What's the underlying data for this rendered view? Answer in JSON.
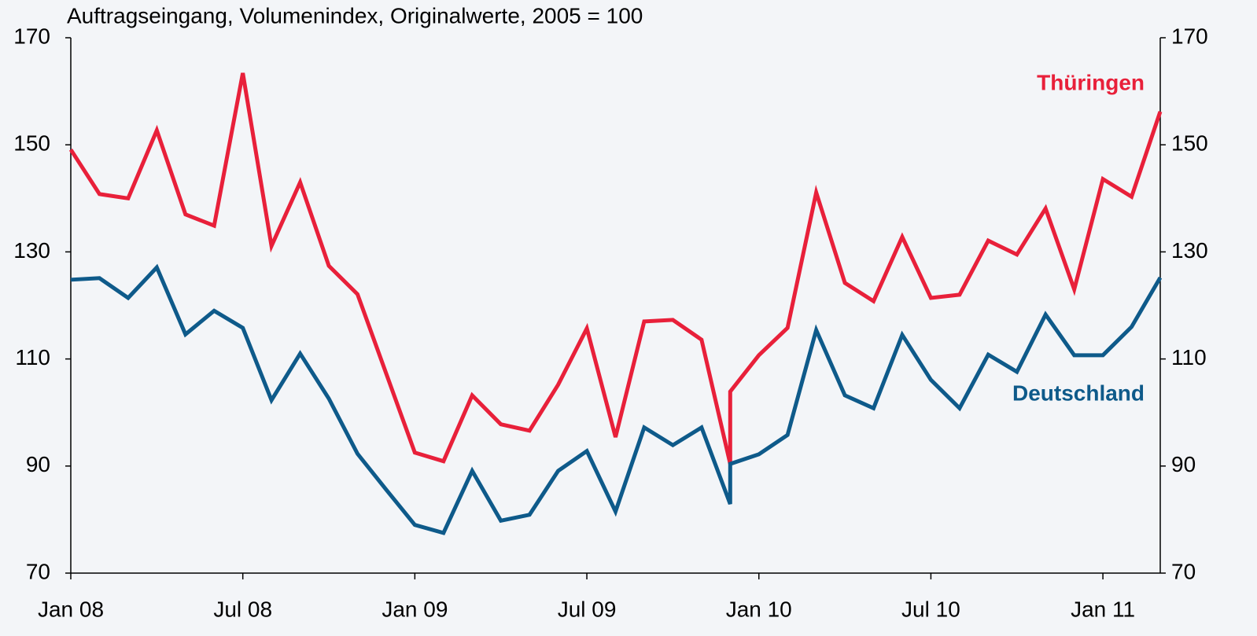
{
  "chart_data": {
    "type": "line",
    "title": "Auftragseingang, Volumenindex, Originalwerte,  2005 = 100",
    "x": [
      0,
      1,
      2,
      3,
      4,
      5,
      6,
      7,
      8,
      9,
      10,
      11,
      12,
      13,
      14,
      15,
      16,
      17,
      18,
      19,
      20,
      21,
      22,
      23,
      23,
      24,
      25,
      26,
      27,
      28,
      29,
      30,
      31,
      32,
      33,
      34,
      35,
      36,
      37,
      38
    ],
    "xlim": [
      0,
      38
    ],
    "xticks": [
      {
        "value": 0,
        "label": "Jan 08"
      },
      {
        "value": 6,
        "label": "Jul 08"
      },
      {
        "value": 12,
        "label": "Jan 09"
      },
      {
        "value": 18,
        "label": "Jul 09"
      },
      {
        "value": 24,
        "label": "Jan 10"
      },
      {
        "value": 30,
        "label": "Jul 10"
      },
      {
        "value": 36,
        "label": "Jan 11"
      }
    ],
    "ylim": [
      70,
      170
    ],
    "yticks": [
      70,
      90,
      110,
      130,
      150,
      170
    ],
    "series": [
      {
        "name": "Thüringen",
        "color": "#e8203a",
        "values": [
          149.1,
          140.8,
          140.0,
          152.7,
          137.0,
          134.9,
          163.4,
          131.1,
          143.0,
          127.4,
          122.1,
          107.3,
          92.5,
          90.9,
          103.2,
          97.8,
          96.6,
          105.2,
          115.7,
          95.4,
          117.0,
          117.3,
          113.6,
          90.4,
          103.9,
          110.7,
          115.8,
          141.1,
          124.2,
          120.8,
          132.8,
          121.4,
          122.0,
          132.1,
          129.5,
          138.1,
          123.0,
          143.6,
          140.3,
          156.2
        ]
      },
      {
        "name": "Deutschland",
        "color": "#0e5a8a",
        "values": [
          124.8,
          125.1,
          121.4,
          127.1,
          114.6,
          119.0,
          115.8,
          102.3,
          111.0,
          102.6,
          92.3,
          85.6,
          79.0,
          77.5,
          89.1,
          79.8,
          80.9,
          89.1,
          92.8,
          81.5,
          97.2,
          93.9,
          97.2,
          82.9,
          90.4,
          92.2,
          95.8,
          115.4,
          103.2,
          100.8,
          114.5,
          106.1,
          100.8,
          110.8,
          107.6,
          118.3,
          110.7,
          110.7,
          116.0,
          125.2
        ]
      }
    ]
  }
}
